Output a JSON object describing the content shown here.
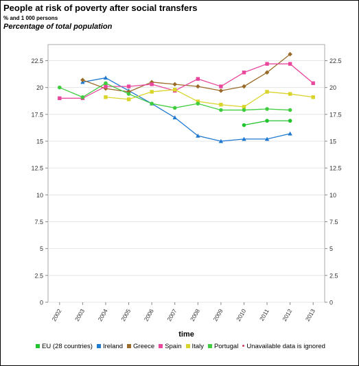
{
  "header": {
    "title": "People at risk of poverty after social transfers",
    "subtitle": "% and 1 000 persons",
    "measure": "Percentage of total population"
  },
  "legend_note": "Unavailable data is ignored",
  "chart_data": {
    "type": "line",
    "xlabel": "time",
    "ylabel": "",
    "categories": [
      "2002",
      "2003",
      "2004",
      "2005",
      "2006",
      "2007",
      "2008",
      "2009",
      "2010",
      "2011",
      "2012",
      "2013"
    ],
    "ylim": [
      0,
      24
    ],
    "yticks": [
      0,
      2.5,
      5,
      7.5,
      10,
      12.5,
      15,
      17.5,
      20,
      22.5
    ],
    "ytick_labels": [
      "0",
      "2.5",
      "5",
      "7.5",
      "10",
      "12.5",
      "15",
      "17.5",
      "20",
      "22.5"
    ],
    "grid": true,
    "legend_position": "bottom",
    "series": [
      {
        "name": "EU (28 countries)",
        "color": "#22c32e",
        "marker": "circle",
        "values": [
          null,
          null,
          null,
          null,
          null,
          null,
          null,
          null,
          16.5,
          16.9,
          16.9,
          null
        ]
      },
      {
        "name": "Ireland",
        "color": "#1f78d1",
        "marker": "triangle",
        "values": [
          null,
          20.5,
          20.9,
          19.7,
          18.5,
          17.2,
          15.5,
          15.0,
          15.2,
          15.2,
          15.7,
          null
        ]
      },
      {
        "name": "Greece",
        "color": "#9a6a28",
        "marker": "diamond",
        "values": [
          null,
          20.7,
          19.9,
          19.6,
          20.5,
          20.3,
          20.1,
          19.7,
          20.1,
          21.4,
          23.1,
          null
        ]
      },
      {
        "name": "Spain",
        "color": "#e8479c",
        "marker": "square",
        "values": [
          19.0,
          19.0,
          20.1,
          20.1,
          20.3,
          19.7,
          20.8,
          20.1,
          21.4,
          22.2,
          22.2,
          20.4
        ]
      },
      {
        "name": "Italy",
        "color": "#d9d42a",
        "marker": "square",
        "values": [
          null,
          null,
          19.1,
          18.9,
          19.6,
          19.8,
          18.7,
          18.4,
          18.2,
          19.6,
          19.4,
          19.1
        ]
      },
      {
        "name": "Portugal",
        "color": "#3fcc3f",
        "marker": "circle",
        "values": [
          20.0,
          19.1,
          20.4,
          19.4,
          18.5,
          18.1,
          18.5,
          17.9,
          17.9,
          18.0,
          17.9,
          null
        ]
      }
    ]
  }
}
